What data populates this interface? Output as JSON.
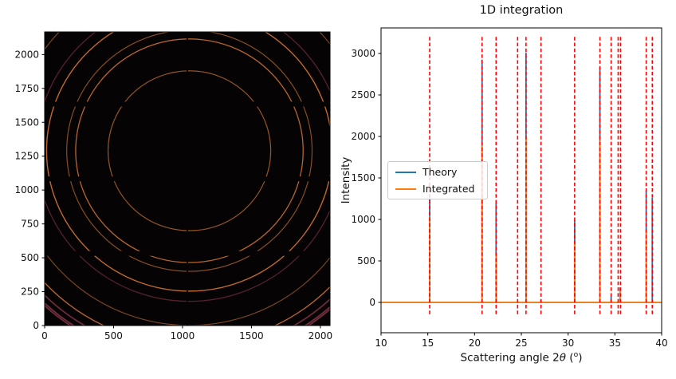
{
  "figure": {
    "background": "#ffffff"
  },
  "chart_data": [
    {
      "type": "heatmap",
      "name": "2D detector diffraction image with Debye-Scherrer rings",
      "xlim": [
        0,
        2070
      ],
      "ylim": [
        0,
        2167
      ],
      "xticks": [
        0,
        500,
        1000,
        1500,
        2000
      ],
      "yticks": [
        0,
        250,
        500,
        750,
        1000,
        1250,
        1500,
        1750,
        2000
      ],
      "background_color": "#060304",
      "beam_center": {
        "x": 1050,
        "y": 1290
      },
      "rings": [
        {
          "two_theta": 15.2,
          "radius": 590,
          "color": "#9a5a29",
          "width": 1.2
        },
        {
          "two_theta": 20.8,
          "radius": 825,
          "color": "#c06a2e",
          "width": 1.3
        },
        {
          "two_theta": 22.3,
          "radius": 890,
          "color": "#8f5326",
          "width": 1.2
        },
        {
          "two_theta": 25.5,
          "radius": 1036,
          "color": "#c87030",
          "width": 1.4
        },
        {
          "two_theta": 27.1,
          "radius": 1111,
          "color": "#5a2330",
          "width": 1.3
        },
        {
          "two_theta": 30.7,
          "radius": 1289,
          "color": "#7c4a24",
          "width": 1.2
        },
        {
          "two_theta": 33.4,
          "radius": 1432,
          "color": "#bd6930",
          "width": 1.4
        },
        {
          "two_theta": 34.6,
          "radius": 1497,
          "color": "#6f2d3d",
          "width": 1.8
        },
        {
          "two_theta": 35.35,
          "radius": 1539,
          "color": "#78303f",
          "width": 1.8
        },
        {
          "two_theta": 35.6,
          "radius": 1552,
          "color": "#78303f",
          "width": 1.8
        }
      ],
      "module_gaps": {
        "horizontal_y": [
          [
            514,
            550
          ],
          [
            1065,
            1100
          ],
          [
            1616,
            1652
          ]
        ],
        "vertical_x": [
          [
            1030,
            1040
          ]
        ]
      }
    },
    {
      "type": "line",
      "title": "1D integration",
      "ylabel": "Intensity",
      "xlabel_parts": {
        "pre": "Scattering angle 2",
        "theta": "θ",
        "open": " (",
        "sup": "o",
        "close": ")"
      },
      "xlim": [
        10,
        40
      ],
      "ylim": [
        -320,
        3320
      ],
      "xticks": [
        10,
        15,
        20,
        25,
        30,
        35,
        40
      ],
      "yticks": [
        0,
        500,
        1000,
        1500,
        2000,
        2500,
        3000
      ],
      "calibrant_lines": {
        "color": "#ff0000",
        "style": "dashed",
        "ymin": -170,
        "ymax": 3200,
        "two_theta": [
          15.2,
          20.8,
          22.3,
          24.6,
          25.5,
          27.1,
          30.7,
          33.4,
          34.6,
          35.35,
          35.6,
          38.35,
          39.0
        ]
      },
      "series": [
        {
          "name": "Theory",
          "color": "#1f77b4",
          "baseline": 0,
          "peaks": [
            [
              15.2,
              1255
            ],
            [
              20.8,
              2925
            ],
            [
              22.3,
              1195
            ],
            [
              24.6,
              10
            ],
            [
              25.5,
              3010
            ],
            [
              27.1,
              30
            ],
            [
              30.7,
              990
            ],
            [
              33.4,
              2830
            ],
            [
              34.6,
              80
            ],
            [
              35.55,
              180
            ],
            [
              38.35,
              1345
            ],
            [
              39.0,
              1260
            ]
          ]
        },
        {
          "name": "Integrated",
          "color": "#ff7f0e",
          "baseline": 0,
          "peaks": [
            [
              15.2,
              1035
            ],
            [
              20.8,
              1890
            ],
            [
              22.3,
              580
            ],
            [
              24.6,
              5
            ],
            [
              25.5,
              2000
            ],
            [
              27.1,
              15
            ],
            [
              30.7,
              735
            ],
            [
              33.4,
              1950
            ],
            [
              34.6,
              40
            ],
            [
              35.55,
              140
            ],
            [
              38.35,
              875
            ],
            [
              39.0,
              0
            ]
          ]
        }
      ],
      "legend": {
        "position": "center-left",
        "entries": [
          {
            "label": "Theory",
            "color": "#1f77b4"
          },
          {
            "label": "Integrated",
            "color": "#ff7f0e"
          }
        ]
      }
    }
  ]
}
